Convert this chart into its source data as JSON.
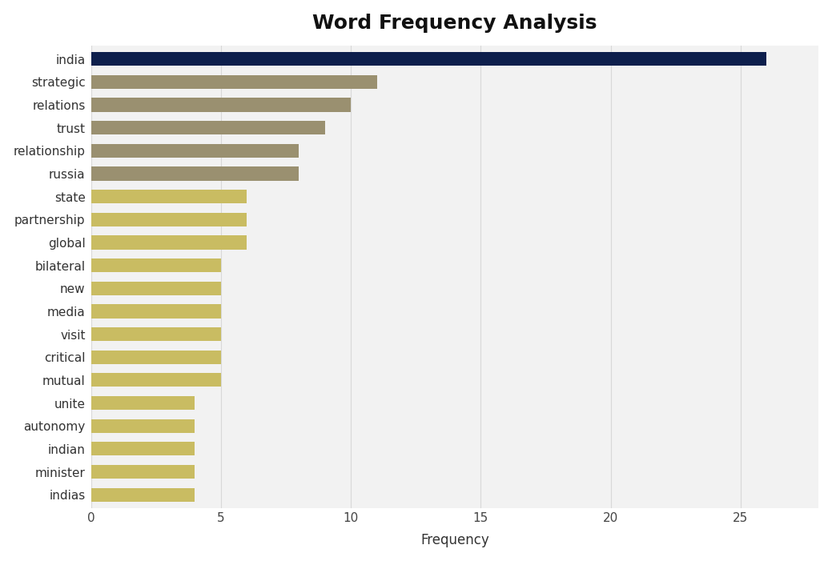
{
  "title": "Word Frequency Analysis",
  "title_fontsize": 18,
  "xlabel": "Frequency",
  "xlabel_fontsize": 12,
  "categories": [
    "indias",
    "minister",
    "indian",
    "autonomy",
    "unite",
    "mutual",
    "critical",
    "visit",
    "media",
    "new",
    "bilateral",
    "global",
    "partnership",
    "state",
    "russia",
    "relationship",
    "trust",
    "relations",
    "strategic",
    "india"
  ],
  "values": [
    4,
    4,
    4,
    4,
    4,
    5,
    5,
    5,
    5,
    5,
    5,
    6,
    6,
    6,
    8,
    8,
    9,
    10,
    11,
    26
  ],
  "bar_colors": [
    "#c9bc62",
    "#c9bc62",
    "#c9bc62",
    "#c9bc62",
    "#c9bc62",
    "#c9bc62",
    "#c9bc62",
    "#c9bc62",
    "#c9bc62",
    "#c9bc62",
    "#c9bc62",
    "#c9bc62",
    "#c9bc62",
    "#c9bc62",
    "#9a9070",
    "#9a9070",
    "#9a9070",
    "#9a9070",
    "#9a9070",
    "#0d1f4c"
  ],
  "outer_background": "#ffffff",
  "plot_background": "#f2f2f2",
  "xlim": [
    0,
    28
  ],
  "xticks": [
    0,
    5,
    10,
    15,
    20,
    25
  ],
  "bar_height": 0.6
}
